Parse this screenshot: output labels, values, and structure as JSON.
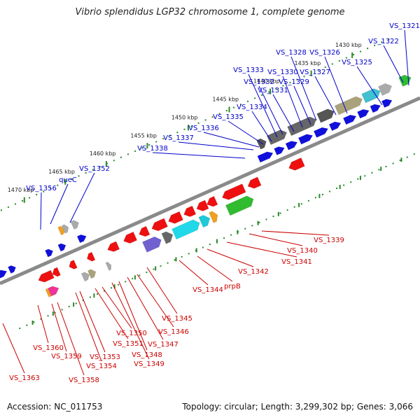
{
  "title": "Vibrio splendidus LGP32 chromosome 1, complete genome",
  "accession": "Accession: NC_011753",
  "stats": "Topology: circular; Length: 3,299,302 bp; Genes: 3,066",
  "colors": {
    "forward_label": "#0000cc",
    "reverse_label": "#cc0000",
    "backbone": "#8a8a8a",
    "tick": "#2a8a2a"
  },
  "ticks": [
    "1430 kbp",
    "1435 kbp",
    "1440 kbp",
    "1445 kbp",
    "1450 kbp",
    "1455 kbp",
    "1460 kbp",
    "1465 kbp",
    "1470 kbp"
  ],
  "forward_labels": [
    "VS_1321",
    "VS_1322",
    "VS_1325",
    "VS_1326",
    "VS_1327",
    "VS_1328",
    "VS_1329",
    "VS_1330",
    "VS_1331",
    "VS_1332",
    "VS_1333",
    "VS_1334",
    "VS_1335",
    "VS_1336",
    "VS_1337",
    "VS_1338",
    "VS_1352",
    "queC",
    "VS_1356"
  ],
  "reverse_labels": [
    "VS_1339",
    "VS_1340",
    "VS_1341",
    "VS_1342",
    "prpB",
    "VS_1344",
    "VS_1345",
    "VS_1346",
    "VS_1347",
    "VS_1348",
    "VS_1349",
    "VS_1350",
    "VS_1351",
    "VS_1353",
    "VS_1354",
    "VS_1358",
    "VS_1359",
    "VS_1360",
    "VS_1363"
  ]
}
